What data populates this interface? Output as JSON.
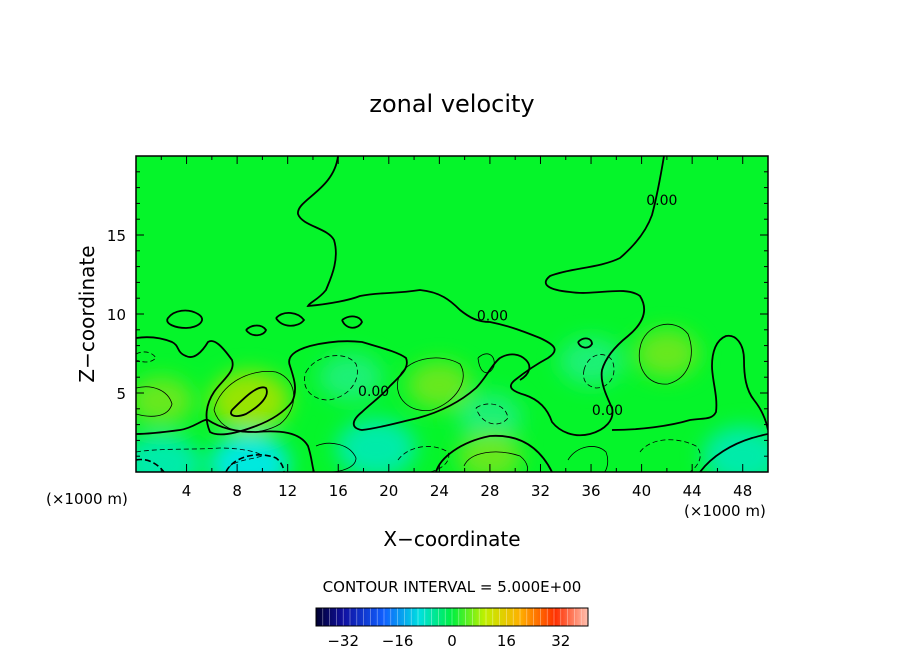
{
  "chart_data": {
    "type": "heatmap",
    "title": "zonal velocity",
    "xlabel": "X−coordinate",
    "ylabel": "Z−coordinate",
    "x_unit_left": "(×1000 m)",
    "x_unit_right": "(×1000 m)",
    "xlim": [
      0,
      50
    ],
    "ylim": [
      0,
      20
    ],
    "x_ticks": [
      4,
      8,
      12,
      16,
      20,
      24,
      28,
      32,
      36,
      40,
      44,
      48
    ],
    "x_tick_labels": [
      "4",
      "8",
      "12",
      "16",
      "20",
      "24",
      "28",
      "32",
      "36",
      "40",
      "44",
      "48"
    ],
    "y_ticks": [
      5,
      10,
      15
    ],
    "y_tick_labels": [
      "5",
      "10",
      "15"
    ],
    "contour_interval_text": "CONTOUR INTERVAL = 5.000E+00",
    "contour_label": "0.00",
    "contour_labels": [
      {
        "x": 41.6,
        "z": 16.9,
        "text": "0.00"
      },
      {
        "x": 28.2,
        "z": 9.6,
        "text": "0.00"
      },
      {
        "x": 18.8,
        "z": 4.8,
        "text": "0.00"
      },
      {
        "x": 37.3,
        "z": 3.6,
        "text": "0.00"
      }
    ],
    "colorbar": {
      "range": [
        -40,
        40
      ],
      "ticks": [
        -32,
        -16,
        0,
        16,
        32
      ],
      "tick_labels": [
        "−32",
        "−16",
        "0",
        "16",
        "32"
      ]
    },
    "field_features": [
      {
        "x": 9,
        "z": 4.5,
        "value": 10,
        "kind": "positive"
      },
      {
        "x": 24,
        "z": 5.5,
        "value": 5,
        "kind": "positive"
      },
      {
        "x": 42,
        "z": 7.5,
        "value": 5,
        "kind": "positive"
      },
      {
        "x": 2,
        "z": 4.5,
        "value": 5,
        "kind": "positive"
      },
      {
        "x": 17,
        "z": 6,
        "value": -5,
        "kind": "negative"
      },
      {
        "x": 28,
        "z": 3.5,
        "value": -5,
        "kind": "negative"
      },
      {
        "x": 36,
        "z": 7,
        "value": -5,
        "kind": "negative"
      },
      {
        "x": 9,
        "z": 0.5,
        "value": -15,
        "kind": "negative"
      },
      {
        "x": 2,
        "z": 0.5,
        "value": -10,
        "kind": "negative"
      },
      {
        "x": 28,
        "z": 1,
        "value": 5,
        "kind": "positive"
      },
      {
        "x": 19,
        "z": 1.5,
        "value": -10,
        "kind": "negative"
      },
      {
        "x": 48,
        "z": 1,
        "value": -10,
        "kind": "negative"
      }
    ]
  }
}
